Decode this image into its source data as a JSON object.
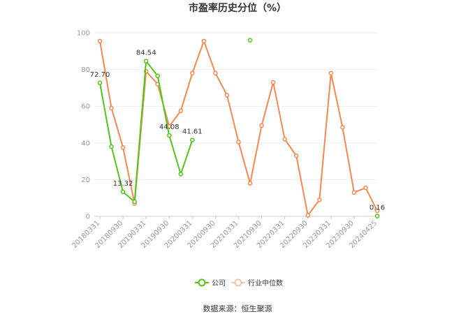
{
  "chart_data": {
    "type": "line",
    "title": "市盈率历史分位（%）",
    "ylim": [
      0,
      100
    ],
    "y_ticks": [
      0,
      20,
      40,
      60,
      80,
      100
    ],
    "grid": true,
    "legend_position": "bottom",
    "x_tick_labels": [
      "20180331",
      "20180930",
      "20190331",
      "20190930",
      "20200331",
      "20200930",
      "20210331",
      "20210930",
      "20220331",
      "20220930",
      "20230331",
      "20230930",
      "20240425"
    ],
    "categories": [
      "20180331",
      "20180630",
      "20180930",
      "20181231",
      "20190331",
      "20190630",
      "20190930",
      "20191231",
      "20200331",
      "20200630",
      "20200930",
      "20201231",
      "20210331",
      "20210630",
      "20210930",
      "20211231",
      "20220331",
      "20220630",
      "20220930",
      "20221231",
      "20230331",
      "20230630",
      "20230930",
      "20231231",
      "20240425"
    ],
    "series": [
      {
        "name": "公司",
        "color": "#52c41a",
        "values": [
          72.7,
          38.0,
          13.32,
          8.0,
          84.54,
          76.5,
          44.08,
          23.0,
          41.61,
          null,
          null,
          null,
          null,
          96.0,
          null,
          null,
          null,
          null,
          null,
          null,
          null,
          null,
          null,
          null,
          0.16
        ]
      },
      {
        "name": "行业中位数",
        "color": "#f5884f",
        "values": [
          95.5,
          59.0,
          37.5,
          7.0,
          79.0,
          72.0,
          49.0,
          57.5,
          78.0,
          95.5,
          78.0,
          66.0,
          40.5,
          18.0,
          49.5,
          73.0,
          42.0,
          33.0,
          0.5,
          9.0,
          78.0,
          48.5,
          13.0,
          15.5,
          3.0
        ]
      }
    ],
    "data_labels": [
      {
        "series": 0,
        "index": 0,
        "text": "72.70"
      },
      {
        "series": 0,
        "index": 2,
        "text": "13.32"
      },
      {
        "series": 0,
        "index": 4,
        "text": "84.54"
      },
      {
        "series": 0,
        "index": 6,
        "text": "44.08"
      },
      {
        "series": 0,
        "index": 8,
        "text": "41.61"
      },
      {
        "series": 0,
        "index": 24,
        "text": "0.16"
      }
    ]
  },
  "footer": {
    "source": "数据来源：恒生聚源"
  }
}
